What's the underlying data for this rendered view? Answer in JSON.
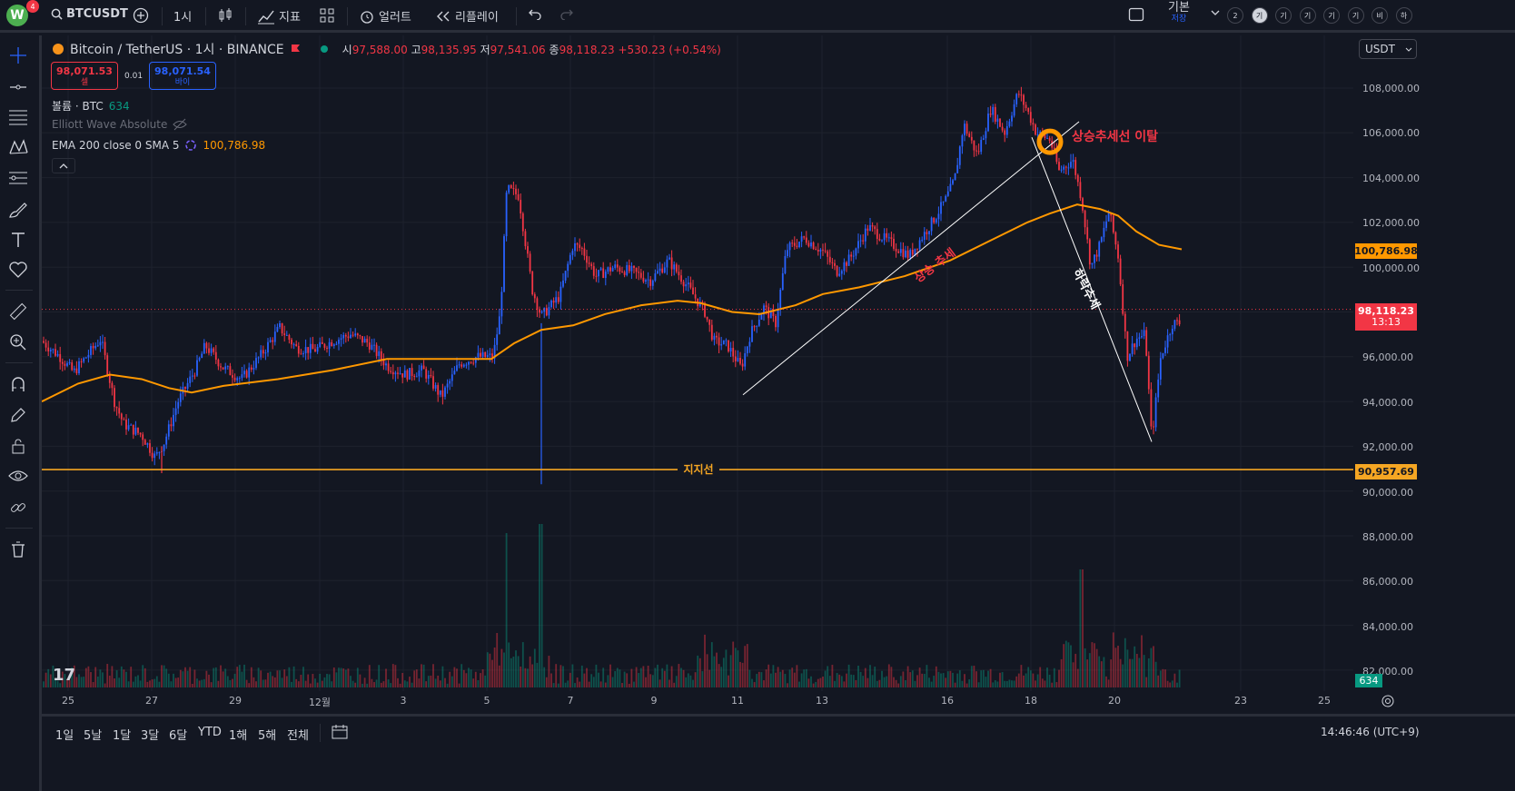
{
  "toolbar": {
    "logo_letter": "W",
    "logo_badge": "4",
    "symbol": "BTCUSDT",
    "interval": "1시",
    "indicators_label": "지표",
    "alert_label": "얼러트",
    "replay_label": "리플레이",
    "layout_label": "기본",
    "layout_sub": "저장",
    "tf_circles": [
      "2",
      "기",
      "기",
      "기",
      "기",
      "기",
      "비",
      "하"
    ]
  },
  "legend": {
    "title": "Bitcoin / TetherUS · 1시 · BINANCE",
    "open_label": "시",
    "open": "97,588.00",
    "high_label": "고",
    "high": "98,135.95",
    "low_label": "저",
    "low": "97,541.06",
    "close_label": "종",
    "close": "98,118.23",
    "change": "+530.23 (+0.54%)",
    "sell_price": "98,071.53",
    "sell_label": "셀",
    "buy_price": "98,071.54",
    "buy_label": "바이",
    "spread": "0.01",
    "volume_label": "볼륨 · BTC",
    "volume_value": "634",
    "elliott_label": "Elliott Wave Absolute",
    "ema_label": "EMA 200 close 0 SMA 5",
    "ema_value": "100,786.98"
  },
  "currency": "USDT",
  "price_axis": {
    "labels": [
      "108,000.00",
      "106,000.00",
      "104,000.00",
      "102,000.00",
      "100,000.00",
      "98,000.00",
      "96,000.00",
      "94,000.00",
      "92,000.00",
      "90,000.00",
      "88,000.00",
      "86,000.00",
      "84,000.00",
      "82,000.00"
    ],
    "ema_tag": "100,786.98",
    "last_tag": "98,118.23",
    "countdown": "13:13",
    "support_tag": "90,957.69",
    "volume_tag": "634"
  },
  "time_axis": [
    "25",
    "27",
    "29",
    "12월",
    "3",
    "5",
    "7",
    "9",
    "11",
    "13",
    "16",
    "18",
    "20",
    "23",
    "25"
  ],
  "annotations": {
    "up_trend": "상승 추세",
    "down_trend": "하락추세",
    "break_label": "상승추세선 이탈",
    "support_label": "지지선"
  },
  "ranges": [
    "1일",
    "5날",
    "1달",
    "3달",
    "6달",
    "YTD",
    "1해",
    "5해",
    "전체"
  ],
  "clock": "14:46:46 (UTC+9)",
  "colors": {
    "up": "#089981",
    "down": "#f23645",
    "candle_up": "#2962ff",
    "ema": "#ff9800",
    "support": "#f5a623",
    "bg": "#131722"
  }
}
